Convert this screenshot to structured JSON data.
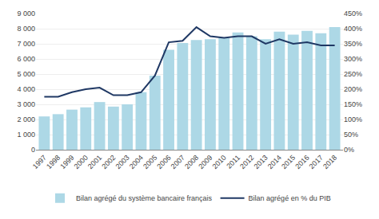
{
  "chart_data": {
    "type": "bar",
    "categories": [
      "1997",
      "1998",
      "1999",
      "2000",
      "2001",
      "2002",
      "2003",
      "2004",
      "2005",
      "2006",
      "2007",
      "2008",
      "2009",
      "2010",
      "2011",
      "2012",
      "2013",
      "2014",
      "2015",
      "2016",
      "2017",
      "2018"
    ],
    "series": [
      {
        "name": "Bilan agrégé du système bancaire français",
        "type": "bar",
        "color": "#add8e6",
        "values": [
          2200,
          2350,
          2650,
          2800,
          3150,
          2850,
          3000,
          3800,
          4900,
          6600,
          7050,
          7250,
          7300,
          7400,
          7750,
          7500,
          7300,
          7800,
          7600,
          7850,
          7700,
          8100
        ]
      },
      {
        "name": "Bilan agrégé en % du PIB",
        "type": "line",
        "axis": "y2",
        "color": "#1f3864",
        "values": [
          175,
          175,
          190,
          200,
          205,
          180,
          180,
          190,
          245,
          355,
          360,
          405,
          375,
          370,
          375,
          375,
          350,
          365,
          350,
          355,
          345,
          345
        ]
      }
    ],
    "ylim": [
      0,
      9000
    ],
    "yticks": [
      0,
      {
        "value": 1000,
        "label": "1 000"
      },
      {
        "value": 2000,
        "label": "2 000"
      },
      {
        "value": 3000,
        "label": "3 000"
      },
      {
        "value": 4000,
        "label": "4 000"
      },
      {
        "value": 5000,
        "label": "5 000"
      },
      {
        "value": 6000,
        "label": "6 000"
      },
      {
        "value": 7000,
        "label": "7 000"
      },
      {
        "value": 8000,
        "label": "8 000"
      },
      {
        "value": 9000,
        "label": "9 000"
      }
    ],
    "y2lim": [
      0,
      450
    ],
    "y2ticks": [
      {
        "value": 0,
        "label": "0%"
      },
      {
        "value": 50,
        "label": "50%"
      },
      {
        "value": 100,
        "label": "100%"
      },
      {
        "value": 150,
        "label": "150%"
      },
      {
        "value": 200,
        "label": "200%"
      },
      {
        "value": 250,
        "label": "250%"
      },
      {
        "value": 300,
        "label": "300%"
      },
      {
        "value": 350,
        "label": "350%"
      },
      {
        "value": 400,
        "label": "400%"
      },
      {
        "value": 450,
        "label": "450%"
      }
    ],
    "grid": true,
    "legend": "bottom"
  }
}
